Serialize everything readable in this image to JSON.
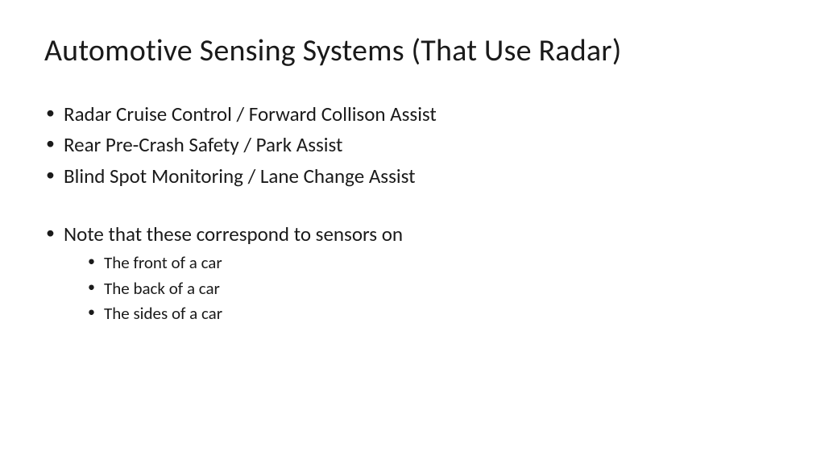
{
  "title": "Automotive Sensing Systems (That Use Radar)",
  "bullets1": {
    "b0": "Radar Cruise Control / Forward Collison Assist",
    "b1": "Rear Pre-Crash Safety / Park Assist",
    "b2": "Blind Spot Monitoring / Lane Change Assist"
  },
  "bullets2": {
    "b0": "Note that these correspond to sensors on",
    "sub": {
      "s0": "The front of a car",
      "s1": "The back of a car",
      "s2": "The sides of a car"
    }
  },
  "style": {
    "background": "#ffffff",
    "text_color": "#1a1a1a",
    "title_fontsize": 38,
    "body_fontsize": 25,
    "sub_fontsize": 21,
    "font_family": "Calibri"
  }
}
